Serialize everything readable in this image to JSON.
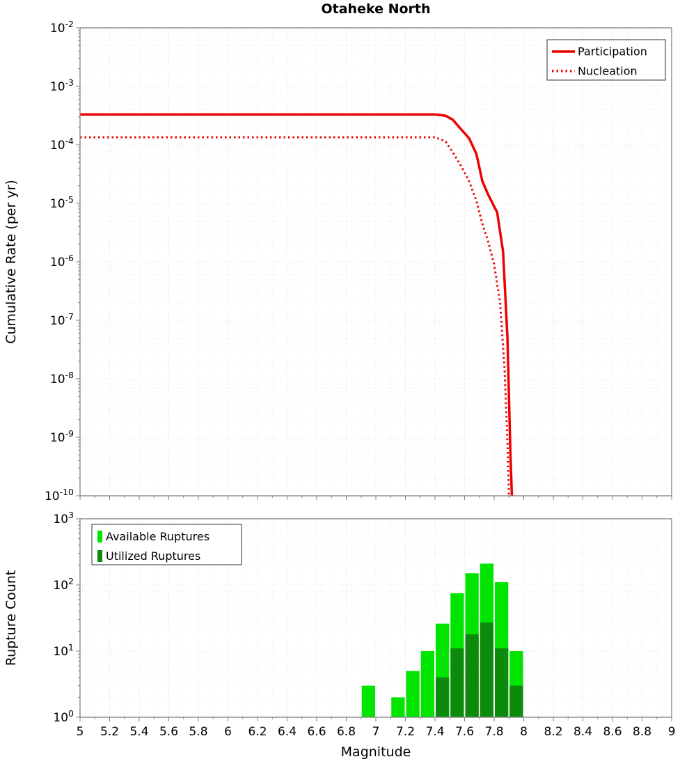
{
  "chart_data": [
    {
      "type": "line",
      "title": "Otaheke North",
      "ylabel": "Cumulative Rate (per yr)",
      "xlabel": "",
      "yscale": "log",
      "xlim": [
        5,
        9
      ],
      "ylim": [
        1e-10,
        0.01
      ],
      "ytick_exponents": [
        -2,
        -3,
        -4,
        -5,
        -6,
        -7,
        -8,
        -9,
        -10
      ],
      "grid": true,
      "legend": {
        "position": "top-right",
        "entries": [
          {
            "label": "Participation",
            "style": "solid",
            "color": "#ee0000"
          },
          {
            "label": "Nucleation",
            "style": "dotted",
            "color": "#ee0000"
          }
        ]
      },
      "series": [
        {
          "name": "Participation",
          "color": "#ee0000",
          "style": "solid",
          "points": [
            [
              5.0,
              0.00033
            ],
            [
              7.4,
              0.00033
            ],
            [
              7.47,
              0.000315
            ],
            [
              7.52,
              0.00027
            ],
            [
              7.58,
              0.00018
            ],
            [
              7.63,
              0.00013
            ],
            [
              7.68,
              7e-05
            ],
            [
              7.72,
              2.4e-05
            ],
            [
              7.76,
              1.4e-05
            ],
            [
              7.82,
              7e-06
            ],
            [
              7.86,
              1.5e-06
            ],
            [
              7.89,
              5e-08
            ],
            [
              7.91,
              5e-10
            ],
            [
              7.92,
              1e-10
            ]
          ]
        },
        {
          "name": "Nucleation",
          "color": "#ee0000",
          "style": "dotted",
          "points": [
            [
              5.0,
              0.000135
            ],
            [
              7.4,
              0.000135
            ],
            [
              7.47,
              0.000115
            ],
            [
              7.52,
              7.5e-05
            ],
            [
              7.58,
              4.2e-05
            ],
            [
              7.63,
              2.4e-05
            ],
            [
              7.68,
              1.1e-05
            ],
            [
              7.72,
              4.5e-06
            ],
            [
              7.76,
              2.2e-06
            ],
            [
              7.8,
              9e-07
            ],
            [
              7.84,
              2e-07
            ],
            [
              7.87,
              1.5e-08
            ],
            [
              7.89,
              8e-10
            ],
            [
              7.9,
              1e-10
            ]
          ]
        }
      ]
    },
    {
      "type": "bar",
      "title": "",
      "ylabel": "Rupture Count",
      "xlabel": "Magnitude",
      "yscale": "log",
      "xlim": [
        5,
        9
      ],
      "ylim": [
        1,
        1000
      ],
      "ytick_exponents": [
        0,
        1,
        2,
        3
      ],
      "bin_width": 0.1,
      "grid": true,
      "xticks": [
        {
          "v": 5,
          "label": "5"
        },
        {
          "v": 5.2,
          "label": "5.2"
        },
        {
          "v": 5.4,
          "label": "5.4"
        },
        {
          "v": 5.6,
          "label": "5.6"
        },
        {
          "v": 5.8,
          "label": "5.8"
        },
        {
          "v": 6,
          "label": "6"
        },
        {
          "v": 6.2,
          "label": "6.2"
        },
        {
          "v": 6.4,
          "label": "6.4"
        },
        {
          "v": 6.6,
          "label": "6.6"
        },
        {
          "v": 6.8,
          "label": "6.8"
        },
        {
          "v": 7,
          "label": "7"
        },
        {
          "v": 7.2,
          "label": "7.2"
        },
        {
          "v": 7.4,
          "label": "7.4"
        },
        {
          "v": 7.6,
          "label": "7.6"
        },
        {
          "v": 7.8,
          "label": "7.8"
        },
        {
          "v": 8,
          "label": "8"
        },
        {
          "v": 8.2,
          "label": "8.2"
        },
        {
          "v": 8.4,
          "label": "8.4"
        },
        {
          "v": 8.6,
          "label": "8.6"
        },
        {
          "v": 8.8,
          "label": "8.8"
        },
        {
          "v": 9,
          "label": "9"
        }
      ],
      "legend": {
        "position": "top-left",
        "entries": [
          {
            "label": "Available Ruptures",
            "color": "#00e400"
          },
          {
            "label": "Utilized Ruptures",
            "color": "#0b8a0b"
          }
        ]
      },
      "series": [
        {
          "name": "Available Ruptures",
          "color": "#00e400",
          "bins": [
            [
              6.9,
              3
            ],
            [
              7.1,
              2
            ],
            [
              7.2,
              5
            ],
            [
              7.3,
              10
            ],
            [
              7.4,
              26
            ],
            [
              7.5,
              75
            ],
            [
              7.6,
              150
            ],
            [
              7.7,
              210
            ],
            [
              7.8,
              110
            ],
            [
              7.9,
              10
            ]
          ]
        },
        {
          "name": "Utilized Ruptures",
          "color": "#0b8a0b",
          "bins": [
            [
              7.4,
              4
            ],
            [
              7.5,
              11
            ],
            [
              7.6,
              18
            ],
            [
              7.7,
              27
            ],
            [
              7.8,
              11
            ],
            [
              7.9,
              3
            ]
          ]
        }
      ]
    }
  ],
  "style": {
    "grid_major": "#e0e0e0",
    "grid_minor": "#f0f0f0",
    "axis_color": "#808080",
    "legend_border": "#555555",
    "text_color": "#000000"
  }
}
